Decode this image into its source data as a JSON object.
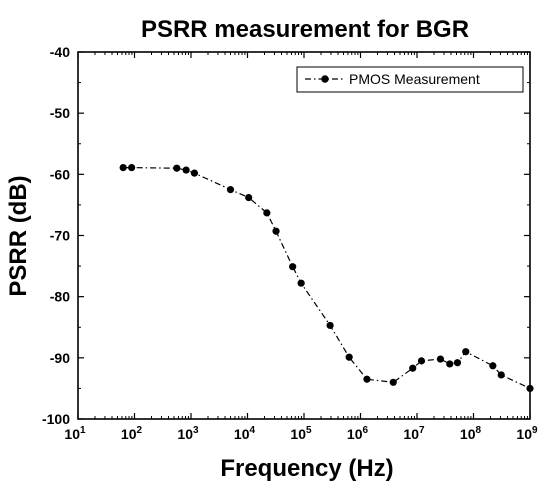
{
  "chart_data": {
    "type": "line",
    "title": "PSRR measurement for BGR",
    "xlabel": "Frequency (Hz)",
    "ylabel": "PSRR (dB)",
    "x_scale": "log",
    "xlim": [
      10,
      1000000000
    ],
    "ylim": [
      -100,
      -40
    ],
    "x_ticks": [
      {
        "value": 10,
        "base": "10",
        "exp": "1"
      },
      {
        "value": 100,
        "base": "10",
        "exp": "2"
      },
      {
        "value": 1000,
        "base": "10",
        "exp": "3"
      },
      {
        "value": 10000,
        "base": "10",
        "exp": "4"
      },
      {
        "value": 100000,
        "base": "10",
        "exp": "5"
      },
      {
        "value": 1000000,
        "base": "10",
        "exp": "6"
      },
      {
        "value": 10000000,
        "base": "10",
        "exp": "7"
      },
      {
        "value": 100000000,
        "base": "10",
        "exp": "8"
      },
      {
        "value": 1000000000,
        "base": "10",
        "exp": "9"
      }
    ],
    "y_ticks": [
      "-40",
      "-50",
      "-60",
      "-70",
      "-80",
      "-90",
      "-100"
    ],
    "legend_position": "top-right",
    "grid": false,
    "series": [
      {
        "name": "PMOS Measurement",
        "color": "#000000",
        "line_style": "dash-dot",
        "marker": "circle",
        "points": [
          {
            "x": 63,
            "y": -58.9
          },
          {
            "x": 89,
            "y": -58.9
          },
          {
            "x": 560,
            "y": -59.0
          },
          {
            "x": 820,
            "y": -59.3
          },
          {
            "x": 1150,
            "y": -59.8
          },
          {
            "x": 5000,
            "y": -62.5
          },
          {
            "x": 10500,
            "y": -63.8
          },
          {
            "x": 22000,
            "y": -66.3
          },
          {
            "x": 32000,
            "y": -69.3
          },
          {
            "x": 63000,
            "y": -75.1
          },
          {
            "x": 89000,
            "y": -77.8
          },
          {
            "x": 290000,
            "y": -84.7
          },
          {
            "x": 630000,
            "y": -89.9
          },
          {
            "x": 1300000,
            "y": -93.5
          },
          {
            "x": 3800000,
            "y": -94.0
          },
          {
            "x": 8400000,
            "y": -91.7
          },
          {
            "x": 12000000,
            "y": -90.5
          },
          {
            "x": 26000000,
            "y": -90.2
          },
          {
            "x": 38000000,
            "y": -91.0
          },
          {
            "x": 52000000,
            "y": -90.8
          },
          {
            "x": 73000000,
            "y": -89.0
          },
          {
            "x": 220000000,
            "y": -91.3
          },
          {
            "x": 310000000,
            "y": -92.8
          },
          {
            "x": 1000000000,
            "y": -95.0
          }
        ]
      }
    ]
  }
}
